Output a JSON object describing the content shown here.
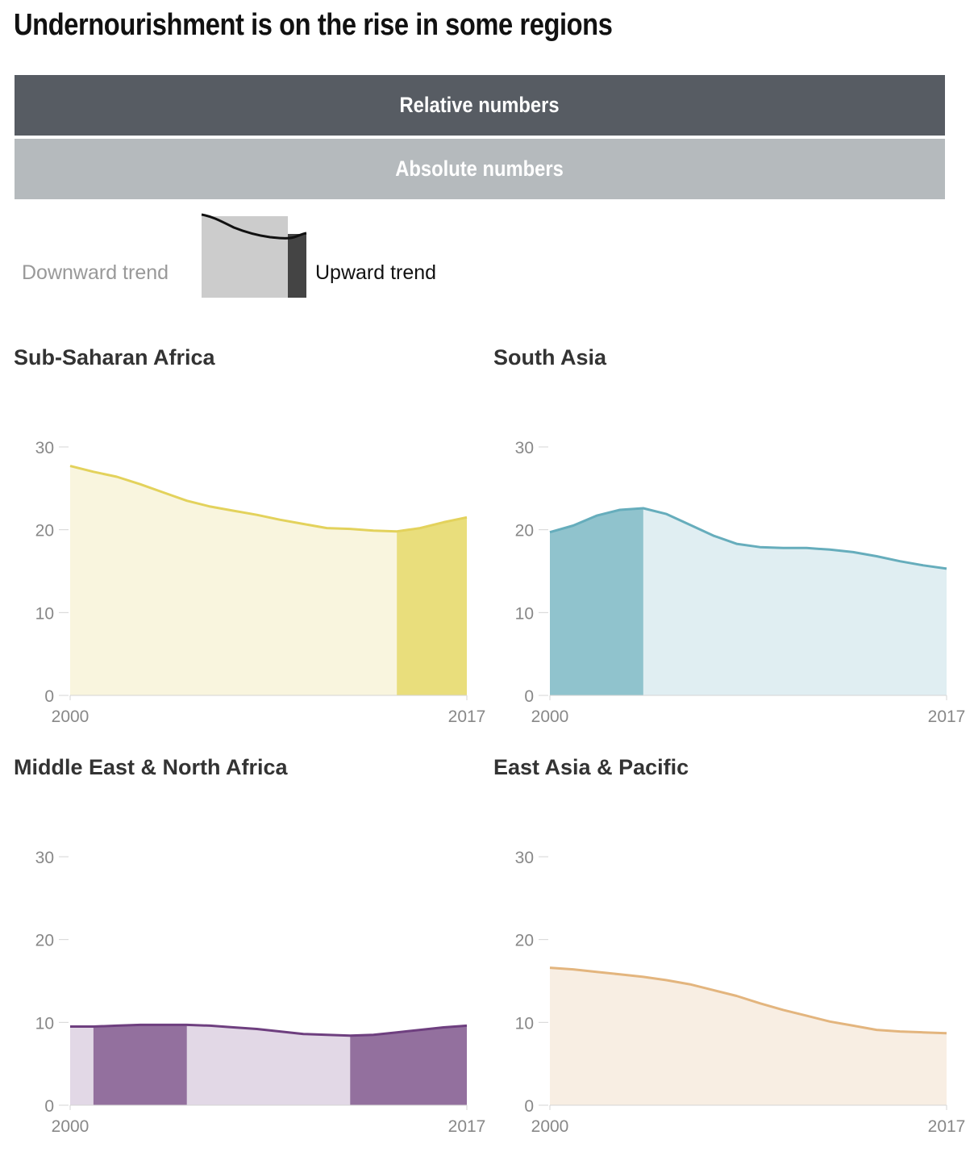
{
  "title": "Undernourishment is on the rise in some regions",
  "toggles": {
    "relative_label": "Relative numbers",
    "absolute_label": "Absolute numbers",
    "active": "relative"
  },
  "legend": {
    "down_label": "Downward trend",
    "up_label": "Upward trend",
    "down_color": "#cccccc",
    "up_color": "#444444"
  },
  "chart_data": [
    {
      "type": "area",
      "title": "Sub-Saharan Africa",
      "x": [
        2000,
        2001,
        2002,
        2003,
        2004,
        2005,
        2006,
        2007,
        2008,
        2009,
        2010,
        2011,
        2012,
        2013,
        2014,
        2015,
        2016,
        2017
      ],
      "values": [
        27.7,
        27.0,
        26.4,
        25.5,
        24.5,
        23.5,
        22.8,
        22.3,
        21.8,
        21.2,
        20.7,
        20.2,
        20.1,
        19.9,
        19.8,
        20.2,
        20.9,
        21.5
      ],
      "upward_ranges": [
        [
          2014,
          2017
        ]
      ],
      "color": "#e3d25c",
      "light_color": "#f9f5de",
      "dark_color": "#e9de7c",
      "ylim": [
        0,
        30
      ],
      "yticks": [
        0,
        10,
        20,
        30
      ],
      "xtick_labels": [
        "2000",
        "2017"
      ]
    },
    {
      "type": "area",
      "title": "South Asia",
      "x": [
        2000,
        2001,
        2002,
        2003,
        2004,
        2005,
        2006,
        2007,
        2008,
        2009,
        2010,
        2011,
        2012,
        2013,
        2014,
        2015,
        2016,
        2017
      ],
      "values": [
        19.7,
        20.5,
        21.7,
        22.4,
        22.6,
        21.9,
        20.6,
        19.3,
        18.3,
        17.9,
        17.8,
        17.8,
        17.6,
        17.3,
        16.8,
        16.2,
        15.7,
        15.3
      ],
      "upward_ranges": [
        [
          2000,
          2004
        ]
      ],
      "color": "#66adbc",
      "light_color": "#e0eef2",
      "dark_color": "#90c3cd",
      "ylim": [
        0,
        30
      ],
      "yticks": [
        0,
        10,
        20,
        30
      ],
      "xtick_labels": [
        "2000",
        "2017"
      ]
    },
    {
      "type": "area",
      "title": "Middle East & North Africa",
      "x": [
        2000,
        2001,
        2002,
        2003,
        2004,
        2005,
        2006,
        2007,
        2008,
        2009,
        2010,
        2011,
        2012,
        2013,
        2014,
        2015,
        2016,
        2017
      ],
      "values": [
        9.5,
        9.5,
        9.6,
        9.7,
        9.7,
        9.7,
        9.6,
        9.4,
        9.2,
        8.9,
        8.6,
        8.5,
        8.4,
        8.5,
        8.8,
        9.1,
        9.4,
        9.6
      ],
      "upward_ranges": [
        [
          2001,
          2005
        ],
        [
          2012,
          2017
        ]
      ],
      "color": "#6e3f7f",
      "light_color": "#e2d8e6",
      "dark_color": "#93709e",
      "ylim": [
        0,
        30
      ],
      "yticks": [
        0,
        10,
        20,
        30
      ],
      "xtick_labels": [
        "2000",
        "2017"
      ]
    },
    {
      "type": "area",
      "title": "East Asia & Pacific",
      "x": [
        2000,
        2001,
        2002,
        2003,
        2004,
        2005,
        2006,
        2007,
        2008,
        2009,
        2010,
        2011,
        2012,
        2013,
        2014,
        2015,
        2016,
        2017
      ],
      "values": [
        16.6,
        16.4,
        16.1,
        15.8,
        15.5,
        15.1,
        14.6,
        13.9,
        13.2,
        12.3,
        11.5,
        10.8,
        10.1,
        9.6,
        9.1,
        8.9,
        8.8,
        8.7
      ],
      "upward_ranges": [],
      "color": "#e3b57e",
      "light_color": "#f8eee3",
      "dark_color": "#e3b57e",
      "ylim": [
        0,
        30
      ],
      "yticks": [
        0,
        10,
        20,
        30
      ],
      "xtick_labels": [
        "2000",
        "2017"
      ]
    }
  ]
}
